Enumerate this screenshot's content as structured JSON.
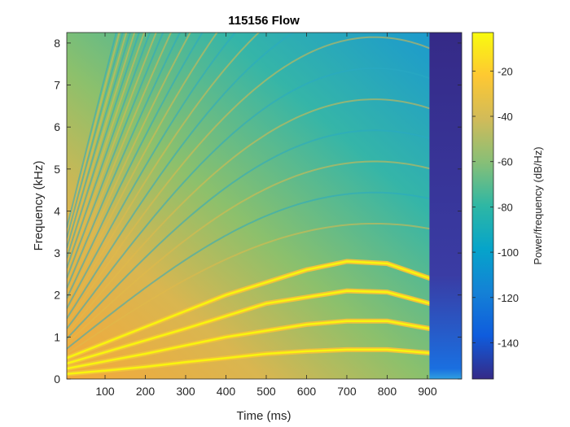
{
  "chart_data": {
    "type": "heatmap",
    "subtype": "spectrogram",
    "title": "115156 Flow",
    "xlabel": "Time (ms)",
    "ylabel": "Frequency (kHz)",
    "xlim": [
      5,
      985
    ],
    "ylim": [
      0,
      8.25
    ],
    "xticks": [
      100,
      200,
      300,
      400,
      500,
      600,
      700,
      800,
      900
    ],
    "yticks": [
      0,
      1,
      2,
      3,
      4,
      5,
      6,
      7,
      8
    ],
    "colorbar": {
      "label": "Power/frequency (dB/Hz)",
      "range": [
        -156,
        -3
      ],
      "ticks": [
        -20,
        -40,
        -60,
        -80,
        -100,
        -120,
        -140
      ],
      "colormap": "parula"
    },
    "sweep_end_ms": 905,
    "silence_after_ms": 905,
    "harmonics": [
      {
        "order": 1,
        "points": [
          [
            5,
            0.12
          ],
          [
            100,
            0.2
          ],
          [
            200,
            0.29
          ],
          [
            300,
            0.4
          ],
          [
            400,
            0.5
          ],
          [
            500,
            0.6
          ],
          [
            600,
            0.66
          ],
          [
            700,
            0.7
          ],
          [
            800,
            0.7
          ],
          [
            905,
            0.62
          ]
        ]
      },
      {
        "order": 2,
        "points": [
          [
            5,
            0.25
          ],
          [
            200,
            0.6
          ],
          [
            400,
            1.0
          ],
          [
            600,
            1.3
          ],
          [
            700,
            1.38
          ],
          [
            800,
            1.38
          ],
          [
            905,
            1.2
          ]
        ]
      },
      {
        "order": 3,
        "points": [
          [
            5,
            0.37
          ],
          [
            300,
            1.2
          ],
          [
            500,
            1.8
          ],
          [
            700,
            2.1
          ],
          [
            800,
            2.07
          ],
          [
            905,
            1.8
          ]
        ]
      },
      {
        "order": 4,
        "points": [
          [
            5,
            0.5
          ],
          [
            400,
            2.0
          ],
          [
            600,
            2.6
          ],
          [
            700,
            2.8
          ],
          [
            800,
            2.75
          ],
          [
            905,
            2.4
          ]
        ]
      }
    ],
    "grid": false,
    "legend": "none"
  }
}
